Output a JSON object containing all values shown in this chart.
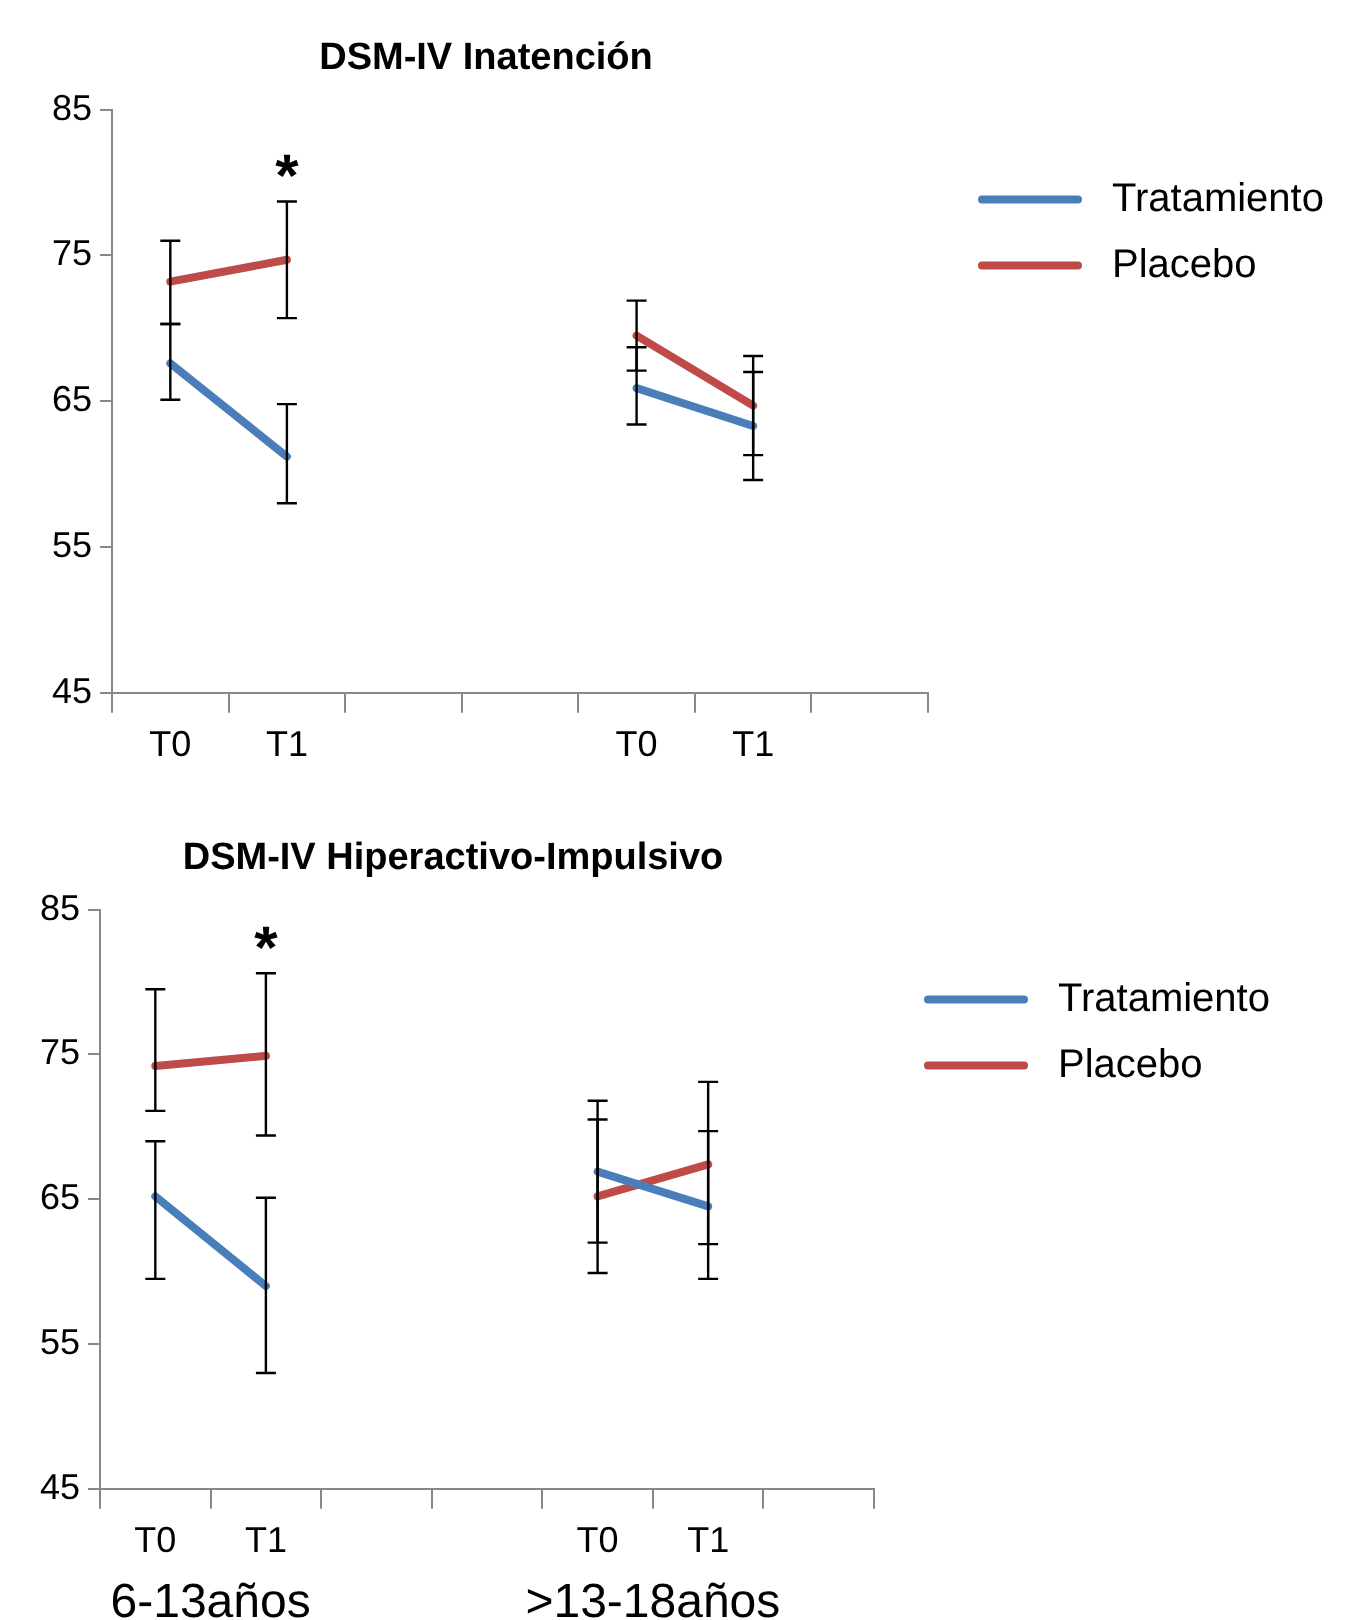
{
  "chart_data": [
    {
      "type": "line",
      "title": "DSM-IV Inatención",
      "categories": [
        "T0",
        "T1",
        null,
        null,
        "T0",
        "T1",
        null
      ],
      "ylim": [
        45,
        85
      ],
      "yticks": [
        45,
        55,
        65,
        75,
        85
      ],
      "grid": false,
      "legend": "top right",
      "marker": "none",
      "line_style": "solid",
      "series": [
        {
          "name": "Tratamiento",
          "color": "#4a7ebb",
          "values": [
            67.6,
            61.2,
            null,
            null,
            65.9,
            63.3,
            null
          ],
          "errors": [
            [
              65.1,
              70.3
            ],
            [
              58.0,
              64.8
            ],
            null,
            null,
            [
              63.4,
              68.7
            ],
            [
              59.6,
              67.0
            ],
            null
          ]
        },
        {
          "name": "Placebo",
          "color": "#be4b48",
          "values": [
            73.2,
            74.7,
            null,
            null,
            69.5,
            64.7,
            null
          ],
          "errors": [
            [
              70.3,
              76.0
            ],
            [
              70.7,
              78.7
            ],
            null,
            null,
            [
              67.1,
              71.9
            ],
            [
              61.3,
              68.1
            ],
            null
          ]
        }
      ],
      "annotations": [
        "*"
      ]
    },
    {
      "type": "line",
      "title": "DSM-IV Hiperactivo-Impulsivo",
      "categories": [
        "T0",
        "T1",
        null,
        null,
        "T0",
        "T1",
        null
      ],
      "ylim": [
        45,
        85
      ],
      "yticks": [
        45,
        55,
        65,
        75,
        85
      ],
      "grid": false,
      "legend": "top right",
      "marker": "none",
      "line_style": "solid",
      "series": [
        {
          "name": "Tratamiento",
          "color": "#4a7ebb",
          "values": [
            65.2,
            59.0,
            null,
            null,
            66.9,
            64.5,
            null
          ],
          "errors": [
            [
              59.5,
              69.0
            ],
            [
              53.0,
              65.1
            ],
            null,
            null,
            [
              62.0,
              71.8
            ],
            [
              59.5,
              69.7
            ],
            null
          ]
        },
        {
          "name": "Placebo",
          "color": "#be4b48",
          "values": [
            74.2,
            74.9,
            null,
            null,
            65.2,
            67.4,
            null
          ],
          "errors": [
            [
              71.1,
              79.5
            ],
            [
              69.4,
              80.6
            ],
            null,
            null,
            [
              59.9,
              70.5
            ],
            [
              61.9,
              73.1
            ],
            null
          ]
        }
      ],
      "annotations": [
        "*",
        "6-13años",
        ">13-18años"
      ]
    }
  ]
}
